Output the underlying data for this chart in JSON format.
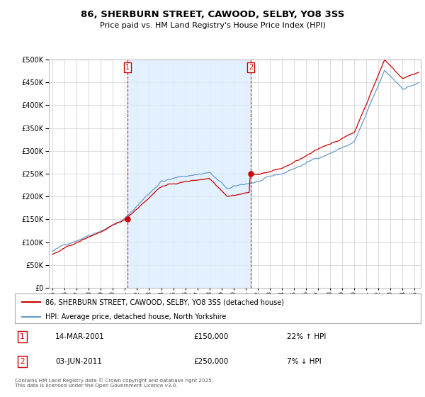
{
  "title": "86, SHERBURN STREET, CAWOOD, SELBY, YO8 3SS",
  "subtitle": "Price paid vs. HM Land Registry's House Price Index (HPI)",
  "legend_line1": "86, SHERBURN STREET, CAWOOD, SELBY, YO8 3SS (detached house)",
  "legend_line2": "HPI: Average price, detached house, North Yorkshire",
  "footer": "Contains HM Land Registry data © Crown copyright and database right 2025.\nThis data is licensed under the Open Government Licence v3.0.",
  "annotation1_label": "1",
  "annotation1_date": "14-MAR-2001",
  "annotation1_price": "£150,000",
  "annotation1_hpi": "22% ↑ HPI",
  "annotation2_label": "2",
  "annotation2_date": "03-JUN-2011",
  "annotation2_price": "£250,000",
  "annotation2_hpi": "7% ↓ HPI",
  "red_color": "#cc0000",
  "blue_color": "#6699cc",
  "shade_color": "#ddeeff",
  "background_color": "#ffffff",
  "grid_color": "#cccccc",
  "sale1_x": 2001.21,
  "sale1_y": 150000,
  "sale2_x": 2011.42,
  "sale2_y": 250000,
  "ylim": [
    0,
    500000
  ],
  "yticks": [
    0,
    50000,
    100000,
    150000,
    200000,
    250000,
    300000,
    350000,
    400000,
    450000,
    500000
  ],
  "xlim_left": 1994.7,
  "xlim_right": 2025.5
}
